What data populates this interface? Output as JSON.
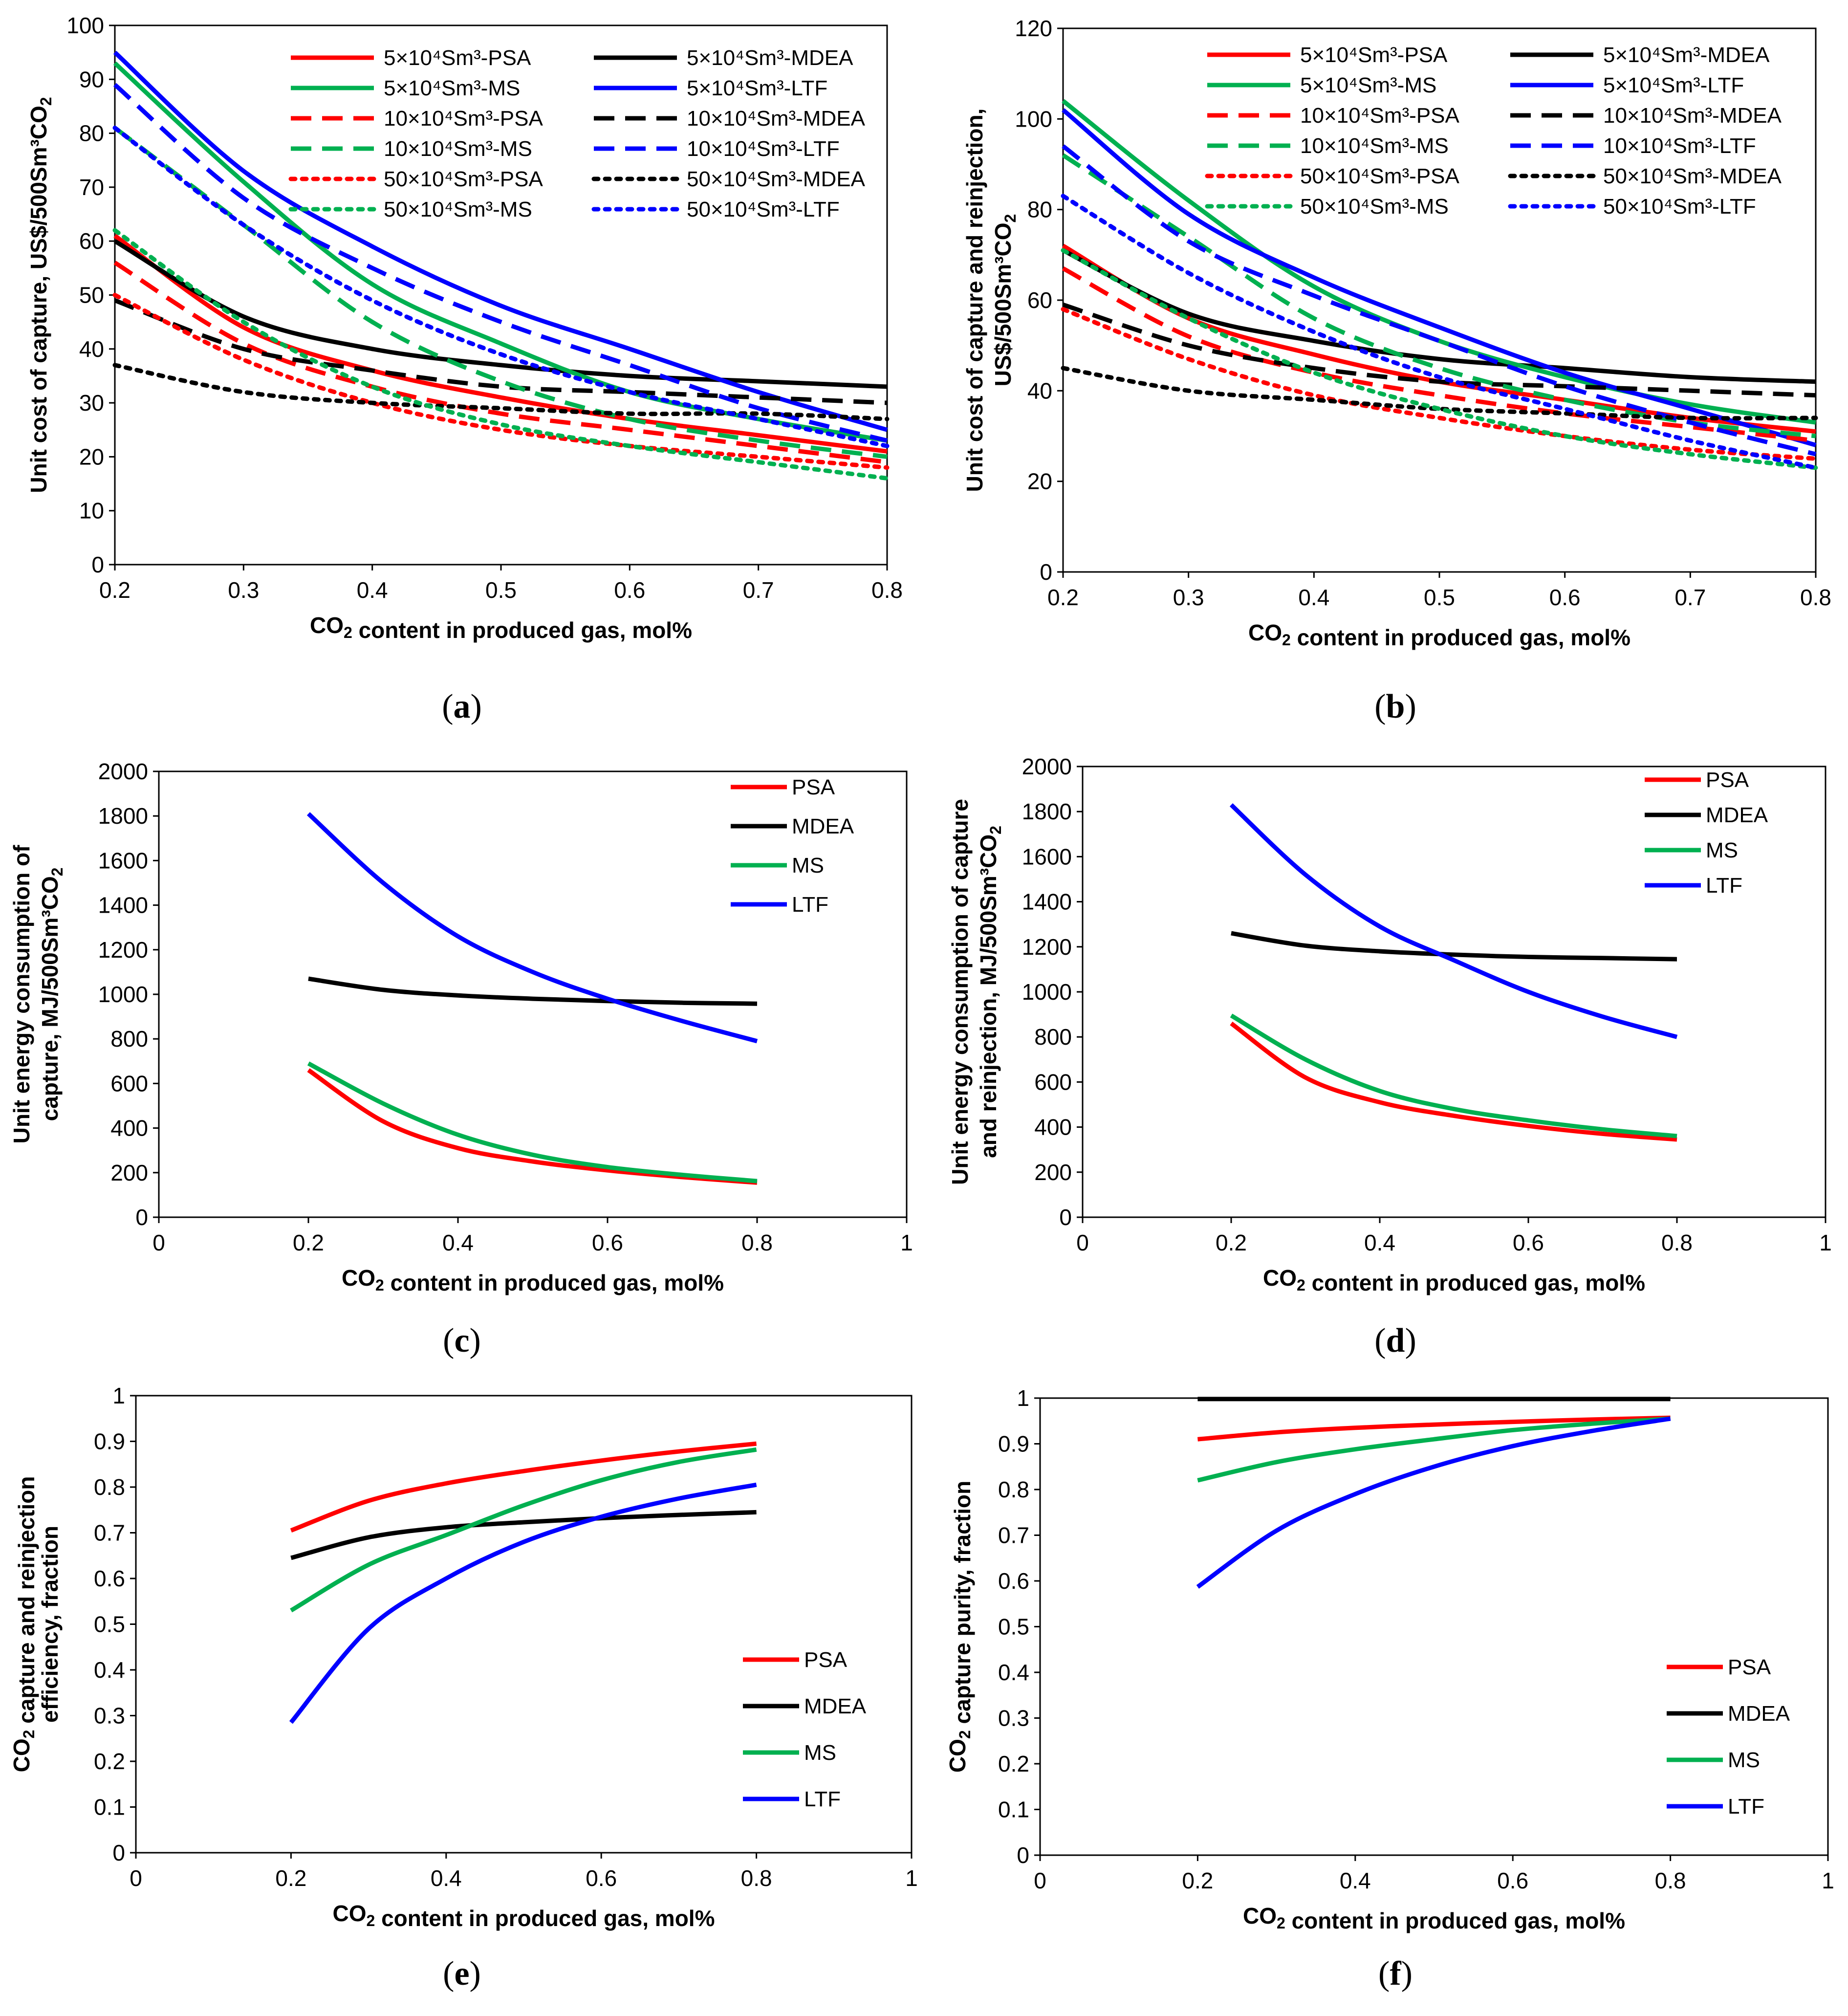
{
  "figure": {
    "captions": [
      "(a)",
      "(b)",
      "(c)",
      "(d)",
      "(e)",
      "(f)"
    ],
    "legend_series_colors": {
      "PSA": "#ff0000",
      "MDEA": "#000000",
      "MS": "#00b050",
      "LTF": "#0000ff"
    }
  },
  "chart_data": [
    {
      "panel": "a",
      "type": "line",
      "caption": "(a)",
      "xlabel": "CO₂ content in produced gas, mol%",
      "ylabel": "Unit cost of capture, US$/500Sm³CO₂",
      "xlim": [
        0.2,
        0.8
      ],
      "ylim": [
        0,
        100
      ],
      "xticks": [
        0.2,
        0.3,
        0.4,
        0.5,
        0.6,
        0.7,
        0.8
      ],
      "yticks": [
        0,
        10,
        20,
        30,
        40,
        50,
        60,
        70,
        80,
        90,
        100
      ],
      "x": [
        0.2,
        0.3,
        0.4,
        0.5,
        0.6,
        0.7,
        0.8
      ],
      "series": [
        {
          "name": "5×10⁴Sm³-PSA",
          "color": "#ff0000",
          "dash": "solid",
          "values": [
            61,
            44,
            36,
            31,
            27,
            24,
            21
          ]
        },
        {
          "name": "5×10⁴Sm³-MDEA",
          "color": "#000000",
          "dash": "solid",
          "values": [
            60,
            46,
            40,
            37,
            35,
            34,
            33
          ]
        },
        {
          "name": "5×10⁴Sm³-MS",
          "color": "#00b050",
          "dash": "solid",
          "values": [
            93,
            71,
            52,
            41,
            32,
            27,
            23
          ]
        },
        {
          "name": "5×10⁴Sm³-LTF",
          "color": "#0000ff",
          "dash": "solid",
          "values": [
            95,
            73,
            59,
            48,
            40,
            32,
            25
          ]
        },
        {
          "name": "10×10⁴Sm³-PSA",
          "color": "#ff0000",
          "dash": "dash",
          "values": [
            56,
            41,
            33,
            28,
            25,
            22,
            19
          ]
        },
        {
          "name": "10×10⁴Sm³-MDEA",
          "color": "#000000",
          "dash": "dash",
          "values": [
            49,
            40,
            36,
            33,
            32,
            31,
            30
          ]
        },
        {
          "name": "10×10⁴Sm³-MS",
          "color": "#00b050",
          "dash": "dash",
          "values": [
            81,
            63,
            45,
            34,
            27,
            23,
            20
          ]
        },
        {
          "name": "10×10⁴Sm³-LTF",
          "color": "#0000ff",
          "dash": "dash",
          "values": [
            89,
            68,
            55,
            45,
            37,
            29,
            23
          ]
        },
        {
          "name": "50×10⁴Sm³-PSA",
          "color": "#ff0000",
          "dash": "dot",
          "values": [
            50,
            38,
            30,
            25,
            22,
            20,
            18
          ]
        },
        {
          "name": "50×10⁴Sm³-MDEA",
          "color": "#000000",
          "dash": "dot",
          "values": [
            37,
            32,
            30,
            29,
            28,
            28,
            27
          ]
        },
        {
          "name": "50×10⁴Sm³-MS",
          "color": "#00b050",
          "dash": "dot",
          "values": [
            62,
            45,
            33,
            26,
            22,
            19,
            16
          ]
        },
        {
          "name": "50×10⁴Sm³-LTF",
          "color": "#0000ff",
          "dash": "dot",
          "values": [
            81,
            63,
            49,
            39,
            32,
            27,
            22
          ]
        }
      ]
    },
    {
      "panel": "b",
      "type": "line",
      "caption": "(b)",
      "xlabel": "CO₂ content in produced gas, mol%",
      "ylabel": "Unit cost of capture and reinjection, US$/500Sm³CO₂",
      "xlim": [
        0.2,
        0.8
      ],
      "ylim": [
        0,
        120
      ],
      "xticks": [
        0.2,
        0.3,
        0.4,
        0.5,
        0.6,
        0.7,
        0.8
      ],
      "yticks": [
        0,
        20,
        40,
        60,
        80,
        100,
        120
      ],
      "x": [
        0.2,
        0.3,
        0.4,
        0.5,
        0.6,
        0.7,
        0.8
      ],
      "series": [
        {
          "name": "5×10⁴Sm³-PSA",
          "color": "#ff0000",
          "dash": "solid",
          "values": [
            72,
            56,
            48,
            42,
            38,
            34,
            31
          ]
        },
        {
          "name": "5×10⁴Sm³-MDEA",
          "color": "#000000",
          "dash": "solid",
          "values": [
            71,
            57,
            51,
            47,
            45,
            43,
            42
          ]
        },
        {
          "name": "5×10⁴Sm³-MS",
          "color": "#00b050",
          "dash": "solid",
          "values": [
            104,
            82,
            63,
            51,
            43,
            37,
            33
          ]
        },
        {
          "name": "5×10⁴Sm³-LTF",
          "color": "#0000ff",
          "dash": "solid",
          "values": [
            102,
            79,
            65,
            54,
            44,
            36,
            28
          ]
        },
        {
          "name": "10×10⁴Sm³-PSA",
          "color": "#ff0000",
          "dash": "dash",
          "values": [
            67,
            52,
            44,
            39,
            35,
            32,
            29
          ]
        },
        {
          "name": "10×10⁴Sm³-MDEA",
          "color": "#000000",
          "dash": "dash",
          "values": [
            59,
            50,
            45,
            42,
            41,
            40,
            39
          ]
        },
        {
          "name": "10×10⁴Sm³-MS",
          "color": "#00b050",
          "dash": "dash",
          "values": [
            92,
            74,
            56,
            45,
            38,
            33,
            30
          ]
        },
        {
          "name": "10×10⁴Sm³-LTF",
          "color": "#0000ff",
          "dash": "dash",
          "values": [
            94,
            73,
            61,
            51,
            41,
            33,
            26
          ]
        },
        {
          "name": "50×10⁴Sm³-PSA",
          "color": "#ff0000",
          "dash": "dot",
          "values": [
            58,
            47,
            39,
            34,
            30,
            27,
            25
          ]
        },
        {
          "name": "50×10⁴Sm³-MDEA",
          "color": "#000000",
          "dash": "dot",
          "values": [
            45,
            40,
            38,
            36,
            35,
            34,
            34
          ]
        },
        {
          "name": "50×10⁴Sm³-MS",
          "color": "#00b050",
          "dash": "dot",
          "values": [
            71,
            56,
            44,
            36,
            30,
            26,
            23
          ]
        },
        {
          "name": "50×10⁴Sm³-LTF",
          "color": "#0000ff",
          "dash": "dot",
          "values": [
            83,
            66,
            53,
            43,
            36,
            29,
            23
          ]
        }
      ]
    },
    {
      "panel": "c",
      "type": "line",
      "caption": "(c)",
      "xlabel": "CO₂ content in produced gas, mol%",
      "ylabel": "Unit energy consumption of capture, MJ/500Sm³CO₂",
      "xlim": [
        0,
        1
      ],
      "ylim": [
        0,
        2000
      ],
      "xticks": [
        0,
        0.2,
        0.4,
        0.6,
        0.8,
        1
      ],
      "yticks": [
        0,
        200,
        400,
        600,
        800,
        1000,
        1200,
        1400,
        1600,
        1800,
        2000
      ],
      "x": [
        0.2,
        0.3,
        0.4,
        0.5,
        0.6,
        0.7,
        0.8
      ],
      "series": [
        {
          "name": "PSA",
          "color": "#ff0000",
          "dash": "solid",
          "values": [
            660,
            430,
            310,
            250,
            210,
            180,
            155
          ]
        },
        {
          "name": "MDEA",
          "color": "#000000",
          "dash": "solid",
          "values": [
            1070,
            1020,
            995,
            980,
            970,
            962,
            958
          ]
        },
        {
          "name": "MS",
          "color": "#00b050",
          "dash": "solid",
          "values": [
            690,
            510,
            370,
            280,
            225,
            190,
            162
          ]
        },
        {
          "name": "LTF",
          "color": "#0000ff",
          "dash": "solid",
          "values": [
            1810,
            1500,
            1260,
            1100,
            980,
            880,
            790
          ]
        }
      ]
    },
    {
      "panel": "d",
      "type": "line",
      "caption": "(d)",
      "xlabel": "CO₂ content in produced gas, mol%",
      "ylabel": "Unit energy consumption of capture and reinjection, MJ/500Sm³CO₂",
      "xlim": [
        0,
        1
      ],
      "ylim": [
        0,
        2000
      ],
      "xticks": [
        0,
        0.2,
        0.4,
        0.6,
        0.8,
        1
      ],
      "yticks": [
        0,
        200,
        400,
        600,
        800,
        1000,
        1200,
        1400,
        1600,
        1800,
        2000
      ],
      "x": [
        0.2,
        0.3,
        0.4,
        0.5,
        0.6,
        0.7,
        0.8
      ],
      "series": [
        {
          "name": "PSA",
          "color": "#ff0000",
          "dash": "solid",
          "values": [
            860,
            620,
            510,
            450,
            405,
            370,
            345
          ]
        },
        {
          "name": "MDEA",
          "color": "#000000",
          "dash": "solid",
          "values": [
            1260,
            1205,
            1180,
            1165,
            1155,
            1150,
            1145
          ]
        },
        {
          "name": "MS",
          "color": "#00b050",
          "dash": "solid",
          "values": [
            895,
            700,
            560,
            480,
            430,
            390,
            360
          ]
        },
        {
          "name": "LTF",
          "color": "#0000ff",
          "dash": "solid",
          "values": [
            1830,
            1520,
            1290,
            1140,
            1000,
            890,
            800
          ]
        }
      ]
    },
    {
      "panel": "e",
      "type": "line",
      "caption": "(e)",
      "xlabel": "CO₂ content in produced gas, mol%",
      "ylabel": "CO₂ capture and reinjection efficiency, fraction",
      "xlim": [
        0,
        1
      ],
      "ylim": [
        0,
        1
      ],
      "xticks": [
        0,
        0.2,
        0.4,
        0.6,
        0.8,
        1
      ],
      "yticks": [
        0,
        0.1,
        0.2,
        0.3,
        0.4,
        0.5,
        0.6,
        0.7,
        0.8,
        0.9,
        1
      ],
      "x": [
        0.2,
        0.3,
        0.4,
        0.5,
        0.6,
        0.7,
        0.8
      ],
      "series": [
        {
          "name": "PSA",
          "color": "#ff0000",
          "dash": "solid",
          "values": [
            0.705,
            0.77,
            0.808,
            0.835,
            0.858,
            0.878,
            0.895
          ]
        },
        {
          "name": "MDEA",
          "color": "#000000",
          "dash": "solid",
          "values": [
            0.645,
            0.69,
            0.712,
            0.723,
            0.732,
            0.739,
            0.745
          ]
        },
        {
          "name": "MS",
          "color": "#00b050",
          "dash": "solid",
          "values": [
            0.53,
            0.63,
            0.695,
            0.76,
            0.815,
            0.855,
            0.882
          ]
        },
        {
          "name": "LTF",
          "color": "#0000ff",
          "dash": "solid",
          "values": [
            0.285,
            0.49,
            0.6,
            0.68,
            0.735,
            0.775,
            0.805
          ]
        }
      ]
    },
    {
      "panel": "f",
      "type": "line",
      "caption": "(f)",
      "xlabel": "CO₂ content in produced gas, mol%",
      "ylabel": "CO₂ capture purity, fraction",
      "xlim": [
        0,
        1
      ],
      "ylim": [
        0,
        1
      ],
      "xticks": [
        0,
        0.2,
        0.4,
        0.6,
        0.8,
        1
      ],
      "yticks": [
        0,
        0.1,
        0.2,
        0.3,
        0.4,
        0.5,
        0.6,
        0.7,
        0.8,
        0.9,
        1
      ],
      "x": [
        0.2,
        0.3,
        0.4,
        0.5,
        0.6,
        0.7,
        0.8
      ],
      "series": [
        {
          "name": "PSA",
          "color": "#ff0000",
          "dash": "solid",
          "values": [
            0.91,
            0.925,
            0.935,
            0.942,
            0.948,
            0.953,
            0.957
          ]
        },
        {
          "name": "MDEA",
          "color": "#000000",
          "dash": "solid",
          "values": [
            0.998,
            0.998,
            0.998,
            0.998,
            0.998,
            0.998,
            0.998
          ]
        },
        {
          "name": "MS",
          "color": "#00b050",
          "dash": "solid",
          "values": [
            0.82,
            0.86,
            0.888,
            0.91,
            0.93,
            0.944,
            0.955
          ]
        },
        {
          "name": "LTF",
          "color": "#0000ff",
          "dash": "solid",
          "values": [
            0.587,
            0.71,
            0.79,
            0.85,
            0.895,
            0.928,
            0.955
          ]
        }
      ]
    }
  ]
}
